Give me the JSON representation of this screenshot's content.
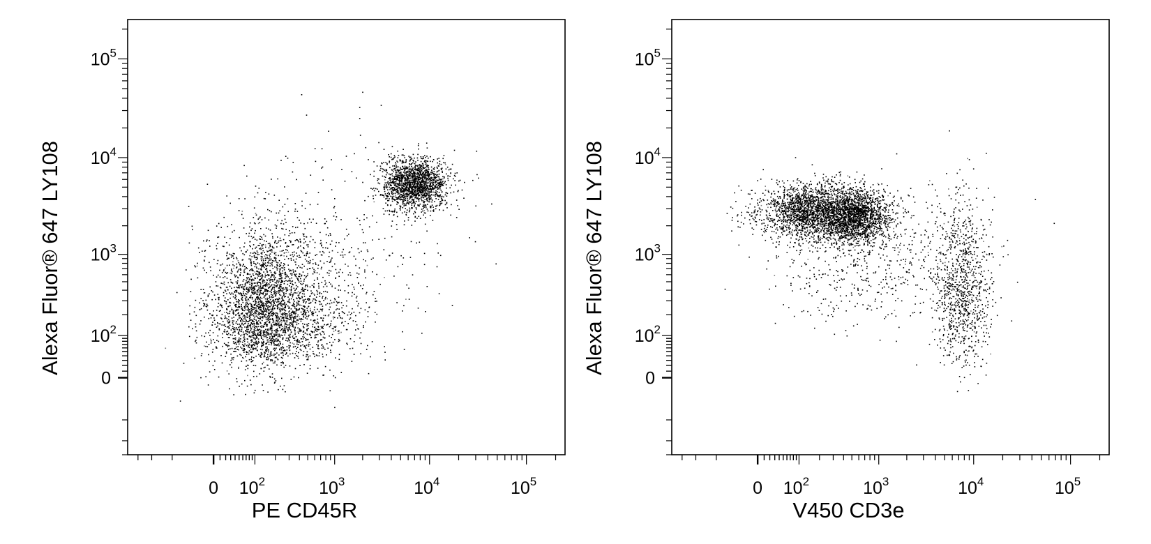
{
  "chart_data": [
    {
      "type": "scatter",
      "xlabel": "PE CD45R",
      "ylabel": "Alexa Fluor® 647  LY108",
      "x_scale": "biexponential",
      "y_scale": "biexponential",
      "xlim": [
        -400,
        250000
      ],
      "ylim": [
        -300,
        250000
      ],
      "x_ticks": [
        {
          "value": 0,
          "base": "0",
          "exp": ""
        },
        {
          "value": 100,
          "base": "10",
          "exp": "2"
        },
        {
          "value": 1000,
          "base": "10",
          "exp": "3"
        },
        {
          "value": 10000,
          "base": "10",
          "exp": "4"
        },
        {
          "value": 100000,
          "base": "10",
          "exp": "5"
        }
      ],
      "y_ticks": [
        {
          "value": 0,
          "base": "0",
          "exp": ""
        },
        {
          "value": 100,
          "base": "10",
          "exp": "2"
        },
        {
          "value": 1000,
          "base": "10",
          "exp": "3"
        },
        {
          "value": 10000,
          "base": "10",
          "exp": "4"
        },
        {
          "value": 100000,
          "base": "10",
          "exp": "5"
        }
      ],
      "grid": false,
      "populations": [
        {
          "x_center": 160,
          "y_center": 250,
          "x_spread_decades": 0.45,
          "y_spread_decades": 0.45,
          "fraction": 0.62
        },
        {
          "x_center": 7000,
          "y_center": 5500,
          "x_spread_decades": 0.17,
          "y_spread_decades": 0.13,
          "fraction": 0.33
        },
        {
          "x_center": 1500,
          "y_center": 1500,
          "x_spread_decades": 0.6,
          "y_spread_decades": 0.55,
          "fraction": 0.05
        }
      ],
      "events_drawn": 5200
    },
    {
      "type": "scatter",
      "xlabel": "V450 CD3e",
      "ylabel": "Alexa Fluor® 647  LY108",
      "x_scale": "biexponential",
      "y_scale": "biexponential",
      "xlim": [
        -400,
        250000
      ],
      "ylim": [
        -300,
        250000
      ],
      "x_ticks": [
        {
          "value": 0,
          "base": "0",
          "exp": ""
        },
        {
          "value": 100,
          "base": "10",
          "exp": "2"
        },
        {
          "value": 1000,
          "base": "10",
          "exp": "3"
        },
        {
          "value": 10000,
          "base": "10",
          "exp": "4"
        },
        {
          "value": 100000,
          "base": "10",
          "exp": "5"
        }
      ],
      "y_ticks": [
        {
          "value": 0,
          "base": "0",
          "exp": ""
        },
        {
          "value": 100,
          "base": "10",
          "exp": "2"
        },
        {
          "value": 1000,
          "base": "10",
          "exp": "3"
        },
        {
          "value": 10000,
          "base": "10",
          "exp": "4"
        },
        {
          "value": 100000,
          "base": "10",
          "exp": "5"
        }
      ],
      "grid": false,
      "populations": [
        {
          "x_center": 130,
          "y_center": 2800,
          "x_spread_decades": 0.35,
          "y_spread_decades": 0.14,
          "fraction": 0.34
        },
        {
          "x_center": 500,
          "y_center": 2600,
          "x_spread_decades": 0.22,
          "y_spread_decades": 0.14,
          "fraction": 0.36
        },
        {
          "x_center": 7500,
          "y_center": 400,
          "x_spread_decades": 0.15,
          "y_spread_decades": 0.5,
          "fraction": 0.18
        },
        {
          "x_center": 800,
          "y_center": 900,
          "x_spread_decades": 0.6,
          "y_spread_decades": 0.35,
          "fraction": 0.12
        }
      ],
      "events_drawn": 5200
    }
  ]
}
